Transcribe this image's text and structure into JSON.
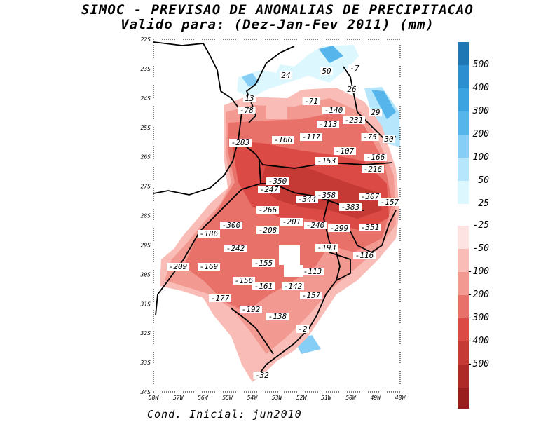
{
  "title": "SIMOC - PREVISAO DE ANOMALIAS DE PRECIPITACAO",
  "subtitle": "Valido para: (Dez-Jan-Fev 2011) (mm)",
  "footer": "Cond. Inicial: jun2010",
  "axes": {
    "lat_labels": [
      "22S",
      "23S",
      "24S",
      "25S",
      "26S",
      "27S",
      "28S",
      "29S",
      "30S",
      "31S",
      "32S",
      "33S",
      "34S"
    ],
    "lon_labels": [
      "58W",
      "57W",
      "56W",
      "55W",
      "54W",
      "53W",
      "52W",
      "51W",
      "50W",
      "49W",
      "48W"
    ]
  },
  "legend": {
    "positive": [
      {
        "label": "500",
        "color": "#1f78b4"
      },
      {
        "label": "400",
        "color": "#2b8fd0"
      },
      {
        "label": "300",
        "color": "#3ba3e0"
      },
      {
        "label": "200",
        "color": "#56b6ec"
      },
      {
        "label": "100",
        "color": "#86cef5"
      },
      {
        "label": "50",
        "color": "#b6e6fb"
      },
      {
        "label": "25",
        "color": "#dcf7fd"
      }
    ],
    "negative": [
      {
        "label": "-25",
        "color": "#fde3e1"
      },
      {
        "label": "-50",
        "color": "#f9bcb6"
      },
      {
        "label": "-100",
        "color": "#f29a92"
      },
      {
        "label": "-200",
        "color": "#e8716a"
      },
      {
        "label": "-300",
        "color": "#dc4a46"
      },
      {
        "label": "-400",
        "color": "#c63a36"
      },
      {
        "label": "-500",
        "color": "#ad2a27"
      }
    ],
    "bottom_color": "#991e1e"
  },
  "annotations": [
    "24",
    "50",
    "-7",
    "13",
    "26",
    "-78",
    "-71",
    "-140",
    "-231",
    "29",
    "-113",
    "-283",
    "-166",
    "-117",
    "-75",
    "30",
    "-107",
    "-166",
    "-153",
    "-216",
    "-350",
    "-247",
    "-358",
    "-344",
    "-307",
    "-157",
    "-266",
    "-383",
    "-300",
    "-208",
    "-201",
    "-240",
    "-299",
    "-351",
    "-186",
    "-242",
    "-193",
    "-116",
    "-209",
    "-169",
    "-155",
    "-113",
    "-156",
    "-161",
    "-142",
    "-157",
    "-177",
    "-192",
    "-138",
    "-2",
    "-32"
  ]
}
